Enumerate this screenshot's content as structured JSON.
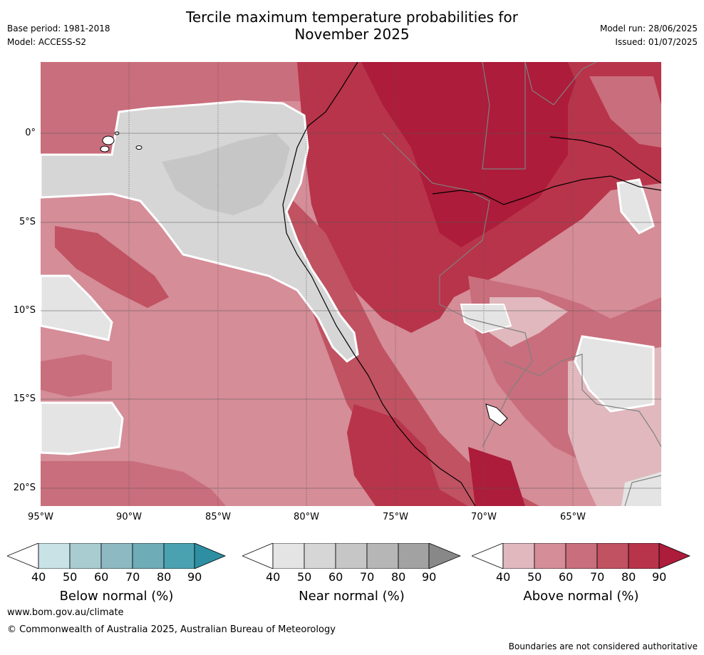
{
  "header": {
    "title_line1": "Tercile maximum temperature probabilities for",
    "title_line2": "November 2025",
    "base_period": "Base period: 1981-2018",
    "model": "Model: ACCESS-S2",
    "model_run": "Model run: 28/06/2025",
    "issued": "Issued: 01/07/2025"
  },
  "map": {
    "lat_labels": [
      "0°",
      "5°S",
      "10°S",
      "15°S",
      "20°S"
    ],
    "lon_labels": [
      "95°W",
      "90°W",
      "85°W",
      "80°W",
      "75°W",
      "70°W",
      "65°W"
    ],
    "colors": {
      "near40": "#e4e4e4",
      "near50": "#d6d6d6",
      "near60": "#c6c6c6",
      "above40": "#e0b8bd",
      "above50": "#d58d98",
      "above60": "#c96e7c",
      "above70": "#c05262",
      "above80": "#b8344a",
      "above90": "#ad1c3a"
    }
  },
  "colorbars": [
    {
      "label": "Below normal (%)",
      "ticks": [
        "40",
        "50",
        "60",
        "70",
        "80",
        "90"
      ],
      "colors": [
        "#c8e2e6",
        "#a9ccd1",
        "#8db9c3",
        "#6eacb7",
        "#4aa2b1",
        "#2e8fa3"
      ]
    },
    {
      "label": "Near normal (%)",
      "ticks": [
        "40",
        "50",
        "60",
        "70",
        "80",
        "90"
      ],
      "colors": [
        "#e4e4e4",
        "#d6d6d6",
        "#c6c6c6",
        "#b6b6b6",
        "#a2a2a2",
        "#888888"
      ]
    },
    {
      "label": "Above normal (%)",
      "ticks": [
        "40",
        "50",
        "60",
        "70",
        "80",
        "90"
      ],
      "colors": [
        "#e0b8bd",
        "#d58d98",
        "#c96e7c",
        "#c05262",
        "#b8344a",
        "#ad1c3a"
      ]
    }
  ],
  "footer": {
    "website": "www.bom.gov.au/climate",
    "copyright": "© Commonwealth of Australia 2025, Australian Bureau of Meteorology",
    "disclaimer": "Boundaries are not considered authoritative"
  }
}
